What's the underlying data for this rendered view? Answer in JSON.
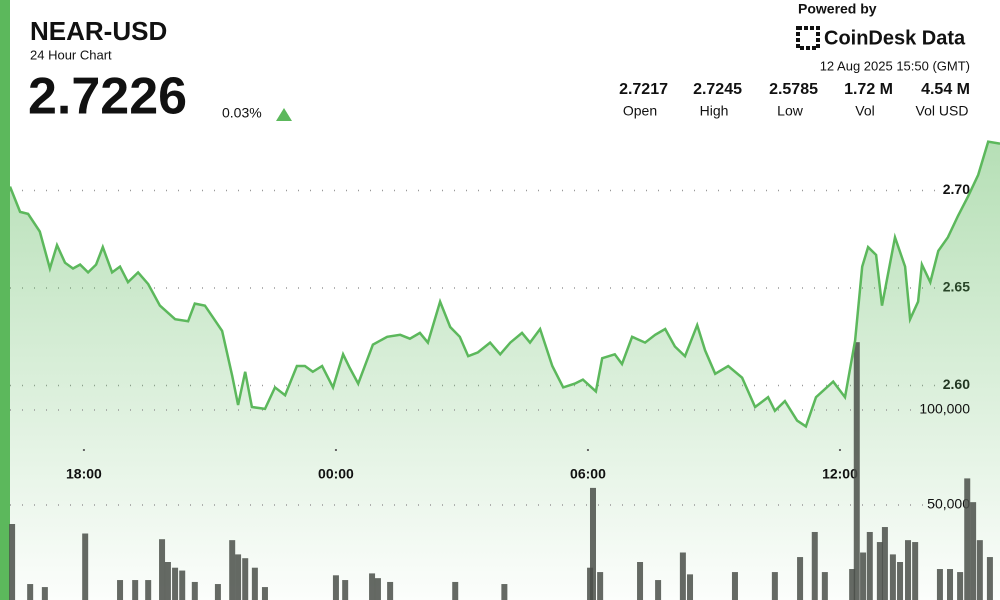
{
  "header": {
    "title": "NEAR-USD",
    "subtitle": "24 Hour Chart",
    "price": "2.7226",
    "change": "0.03%",
    "powered_by": "Powered by",
    "brand": "CoinDesk Data",
    "timestamp": "12 Aug 2025 15:50 (GMT)",
    "stats": [
      {
        "value": "2.7217",
        "label": "Open"
      },
      {
        "value": "2.7245",
        "label": "High"
      },
      {
        "value": "2.5785",
        "label": "Low"
      },
      {
        "value": "1.72 M",
        "label": "Vol"
      },
      {
        "value": "4.54 M",
        "label": "Vol USD"
      }
    ]
  },
  "chart_data": [
    {
      "type": "line",
      "color": "#5cb85c",
      "x": [
        16.24,
        16.48,
        16.67,
        16.95,
        17.19,
        17.36,
        17.55,
        17.74,
        17.91,
        18.1,
        18.29,
        18.45,
        18.67,
        18.86,
        19.05,
        19.29,
        19.53,
        19.81,
        20.17,
        20.48,
        20.64,
        20.88,
        21.07,
        21.29,
        21.53,
        21.67,
        21.84,
        22.0,
        22.31,
        22.55,
        22.79,
        23.07,
        23.26,
        23.45,
        23.67,
        23.93,
        24.17,
        24.33,
        24.53,
        24.88,
        25.22,
        25.53,
        25.76,
        26.0,
        26.19,
        26.48,
        26.72,
        26.95,
        27.15,
        27.38,
        27.67,
        27.91,
        28.15,
        28.43,
        28.62,
        28.86,
        29.15,
        29.41,
        29.69,
        29.88,
        30.19,
        30.34,
        30.64,
        30.81,
        31.05,
        31.36,
        31.6,
        31.84,
        32.07,
        32.31,
        32.6,
        32.79,
        33.03,
        33.34,
        33.67,
        33.98,
        34.29,
        34.45,
        34.69,
        34.98,
        35.19,
        35.43,
        35.84,
        36.12,
        36.36,
        36.53,
        36.67,
        36.86,
        37.0,
        37.31,
        37.55,
        37.67,
        37.86,
        37.95,
        38.15,
        38.34,
        38.57,
        38.81,
        39.05,
        39.29,
        39.53,
        39.81
      ],
      "series": [
        {
          "name": "NEAR-USD",
          "values": [
            2.702,
            2.689,
            2.688,
            2.679,
            2.66,
            2.672,
            2.663,
            2.66,
            2.662,
            2.658,
            2.662,
            2.671,
            2.658,
            2.661,
            2.653,
            2.658,
            2.652,
            2.641,
            2.634,
            2.633,
            2.642,
            2.641,
            2.635,
            2.628,
            2.605,
            2.59,
            2.607,
            2.589,
            2.588,
            2.599,
            2.595,
            2.61,
            2.61,
            2.607,
            2.61,
            2.599,
            2.616,
            2.609,
            2.601,
            2.621,
            2.625,
            2.626,
            2.624,
            2.627,
            2.622,
            2.643,
            2.63,
            2.625,
            2.615,
            2.617,
            2.622,
            2.616,
            2.622,
            2.627,
            2.622,
            2.629,
            2.61,
            2.599,
            2.601,
            2.603,
            2.597,
            2.614,
            2.616,
            2.611,
            2.625,
            2.622,
            2.626,
            2.629,
            2.62,
            2.615,
            2.631,
            2.618,
            2.606,
            2.61,
            2.604,
            2.589,
            2.594,
            2.587,
            2.592,
            2.582,
            2.579,
            2.594,
            2.602,
            2.594,
            2.623,
            2.661,
            2.671,
            2.667,
            2.641,
            2.676,
            2.661,
            2.634,
            2.643,
            2.662,
            2.653,
            2.669,
            2.676,
            2.687,
            2.697,
            2.708,
            2.725,
            2.724
          ]
        }
      ],
      "xlim": [
        16.24,
        39.81
      ],
      "ylim": [
        2.49,
        2.73
      ],
      "xticks": [
        {
          "value": 18,
          "label": "18:00"
        },
        {
          "value": 24,
          "label": "00:00"
        },
        {
          "value": 30,
          "label": "06:00"
        },
        {
          "value": 36,
          "label": "12:00"
        }
      ],
      "yticks": [
        {
          "value": 2.6,
          "label": "2.60"
        },
        {
          "value": 2.65,
          "label": "2.65"
        },
        {
          "value": 2.7,
          "label": "2.70"
        }
      ],
      "grid": true
    },
    {
      "type": "bar",
      "color": "#4a4f49",
      "x": [
        16.29,
        16.72,
        17.07,
        18.03,
        18.86,
        19.22,
        19.53,
        19.86,
        20.0,
        20.17,
        20.34,
        20.64,
        21.19,
        21.53,
        21.67,
        21.84,
        22.07,
        22.31,
        24.0,
        24.22,
        24.86,
        25.0,
        25.29,
        26.84,
        28.01,
        30.05,
        30.12,
        30.29,
        31.24,
        31.67,
        32.26,
        32.43,
        33.5,
        34.45,
        35.05,
        35.4,
        35.64,
        36.29,
        36.4,
        36.55,
        36.71,
        36.95,
        37.07,
        37.26,
        37.43,
        37.62,
        37.79,
        38.38,
        38.62,
        38.86,
        39.03,
        39.17,
        39.33,
        39.57
      ],
      "series": [
        {
          "name": "Volume",
          "values": [
            40000,
            8400,
            6800,
            35000,
            10500,
            10500,
            10500,
            32000,
            20000,
            17000,
            15500,
            9500,
            8400,
            31500,
            24000,
            22000,
            17000,
            6800,
            13000,
            10500,
            14000,
            11500,
            9500,
            9500,
            8400,
            17000,
            59000,
            14700,
            20000,
            10500,
            25000,
            13500,
            14700,
            14700,
            22600,
            35800,
            14700,
            16300,
            135700,
            25000,
            35800,
            30500,
            38400,
            24000,
            20000,
            31500,
            30500,
            16300,
            16300,
            14700,
            64000,
            51500,
            31500,
            22600
          ]
        }
      ],
      "xlim": [
        16.24,
        39.81
      ],
      "ylim": [
        0,
        250000
      ],
      "yticks": [
        {
          "value": 50000,
          "label": "50,000"
        },
        {
          "value": 100000,
          "label": "100,000"
        }
      ],
      "grid": true
    }
  ]
}
